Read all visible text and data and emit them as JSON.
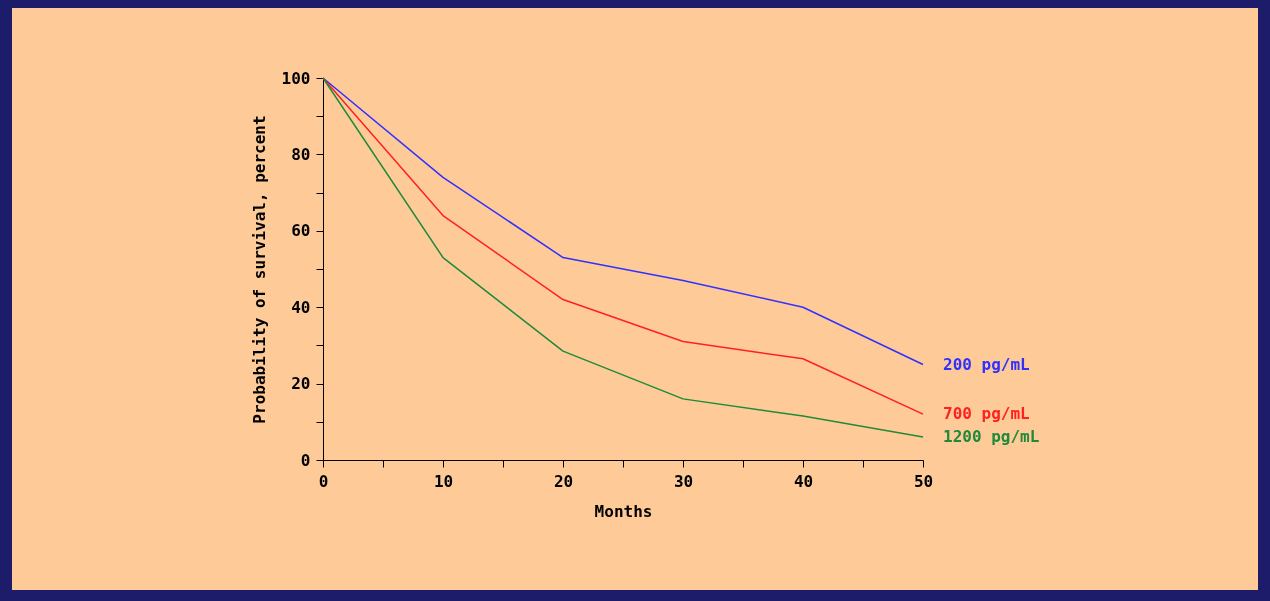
{
  "chart_data": {
    "type": "line",
    "xlabel": "Months",
    "ylabel": "Probability of survival, percent",
    "x": [
      0,
      10,
      20,
      30,
      40,
      50
    ],
    "series": [
      {
        "name": "200 pg/mL",
        "color": "#3030ff",
        "values": [
          100,
          74,
          53,
          47,
          40,
          25
        ]
      },
      {
        "name": "700 pg/mL",
        "color": "#ff2020",
        "values": [
          100,
          64,
          42,
          31,
          26.5,
          12
        ]
      },
      {
        "name": "1200 pg/mL",
        "color": "#1f8a3a",
        "values": [
          100,
          53,
          28.5,
          16,
          11.5,
          6
        ]
      }
    ],
    "xlim": [
      0,
      50
    ],
    "ylim": [
      0,
      100
    ],
    "xticks": [
      0,
      {
        "value": 5,
        "label": null
      },
      10,
      {
        "value": 15,
        "label": null
      },
      20,
      {
        "value": 25,
        "label": null
      },
      30,
      {
        "value": 35,
        "label": null
      },
      40,
      {
        "value": 45,
        "label": null
      },
      50
    ],
    "yticks": [
      0,
      {
        "value": 10,
        "label": null
      },
      20,
      {
        "value": 30,
        "label": null
      },
      40,
      {
        "value": 50,
        "label": null
      },
      60,
      {
        "value": 70,
        "label": null
      },
      80,
      {
        "value": 90,
        "label": null
      },
      100
    ],
    "grid": false,
    "legend": false
  }
}
